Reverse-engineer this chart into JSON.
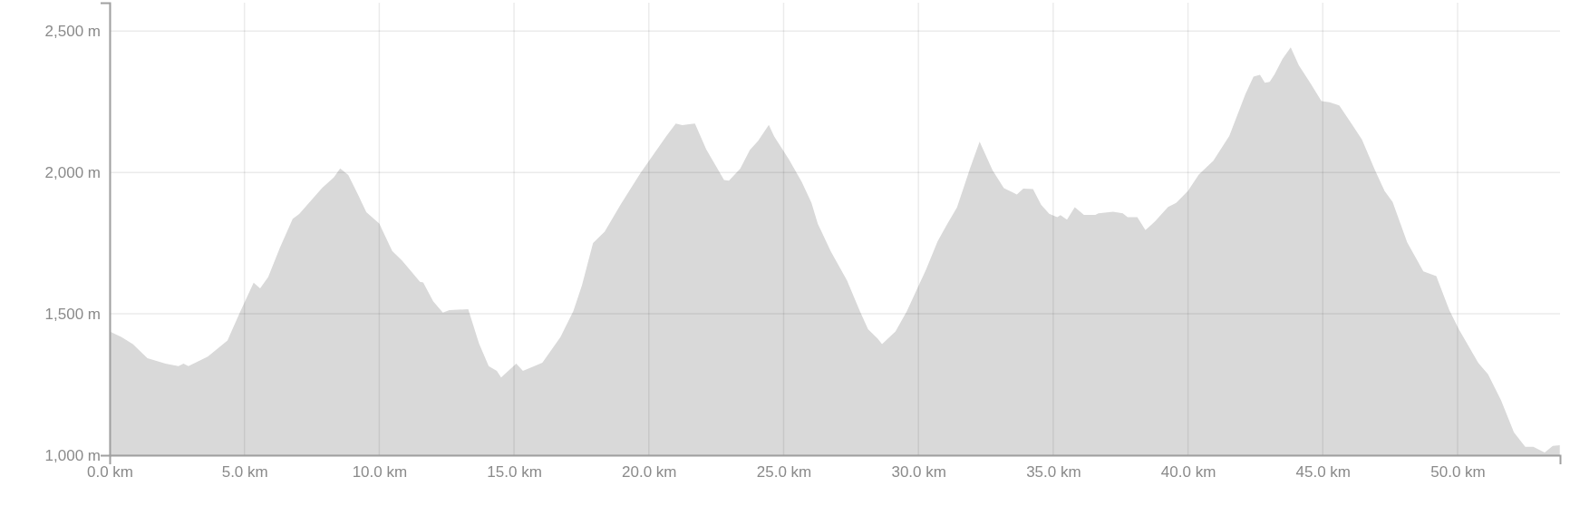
{
  "chart_data": {
    "type": "area",
    "color": "#d9d9d9",
    "grid": true,
    "x": [
      0,
      0.44,
      0.86,
      1.4,
      2.07,
      2.55,
      2.74,
      2.92,
      3.64,
      4.37,
      4.85,
      5.34,
      5.58,
      5.88,
      6.31,
      6.79,
      7.03,
      7.88,
      8.31,
      8.55,
      8.85,
      9.21,
      9.52,
      10.0,
      10.48,
      10.85,
      11.51,
      11.63,
      12.0,
      12.36,
      12.6,
      13.3,
      13.7,
      14.06,
      14.36,
      14.52,
      15.08,
      15.33,
      16.05,
      16.72,
      17.2,
      17.52,
      17.93,
      18.36,
      18.96,
      19.68,
      20.64,
      21.0,
      21.24,
      21.71,
      22.13,
      22.79,
      22.97,
      23.39,
      23.75,
      24.05,
      24.45,
      24.65,
      25.19,
      25.67,
      26.03,
      26.27,
      26.75,
      27.35,
      27.83,
      28.13,
      28.49,
      28.65,
      29.15,
      29.57,
      30.29,
      30.71,
      31.07,
      31.43,
      31.67,
      31.91,
      32.27,
      32.75,
      33.17,
      33.47,
      33.65,
      33.89,
      34.25,
      34.55,
      34.85,
      35.15,
      35.27,
      35.51,
      35.8,
      36.14,
      36.56,
      36.68,
      37.22,
      37.58,
      37.76,
      38.12,
      38.42,
      38.78,
      39.26,
      39.56,
      40.0,
      40.4,
      40.94,
      41.53,
      42.13,
      42.43,
      42.67,
      42.85,
      43.03,
      43.21,
      43.51,
      43.81,
      44.11,
      44.53,
      44.95,
      45.25,
      45.61,
      46.09,
      46.45,
      46.93,
      47.29,
      47.59,
      48.13,
      48.73,
      49.21,
      49.69,
      50.05,
      50.77,
      51.13,
      51.61,
      52.09,
      52.51,
      52.81,
      53.23,
      53.53,
      53.79
    ],
    "values": [
      1438,
      1418,
      1393,
      1343,
      1324,
      1315,
      1324,
      1315,
      1349,
      1406,
      1509,
      1610,
      1590,
      1630,
      1733,
      1836,
      1853,
      1945,
      1982,
      2014,
      1991,
      1922,
      1859,
      1819,
      1722,
      1688,
      1613,
      1611,
      1544,
      1504,
      1513,
      1516,
      1395,
      1315,
      1298,
      1275,
      1324,
      1298,
      1327,
      1418,
      1510,
      1601,
      1750,
      1790,
      1887,
      1996,
      2127,
      2173,
      2167,
      2173,
      2081,
      1973,
      1971,
      2013,
      2080,
      2111,
      2168,
      2127,
      2047,
      1967,
      1893,
      1818,
      1721,
      1618,
      1509,
      1446,
      1412,
      1393,
      1438,
      1509,
      1658,
      1756,
      1818,
      1876,
      1944,
      2013,
      2109,
      2008,
      1944,
      1931,
      1922,
      1943,
      1941,
      1886,
      1854,
      1842,
      1849,
      1833,
      1877,
      1850,
      1850,
      1855,
      1861,
      1855,
      1842,
      1842,
      1796,
      1827,
      1878,
      1892,
      1935,
      1992,
      2041,
      2129,
      2277,
      2339,
      2345,
      2317,
      2320,
      2347,
      2402,
      2442,
      2379,
      2317,
      2252,
      2248,
      2237,
      2169,
      2117,
      2009,
      1935,
      1895,
      1753,
      1650,
      1633,
      1514,
      1445,
      1326,
      1286,
      1195,
      1081,
      1030,
      1030,
      1010,
      1033,
      1035
    ],
    "xlim": [
      0,
      53.8
    ],
    "ylim": [
      1000,
      2600
    ],
    "xticks": [
      {
        "value": 0,
        "label": "0.0 km"
      },
      {
        "value": 5,
        "label": "5.0 km"
      },
      {
        "value": 10,
        "label": "10.0 km"
      },
      {
        "value": 15,
        "label": "15.0 km"
      },
      {
        "value": 20,
        "label": "20.0 km"
      },
      {
        "value": 25,
        "label": "25.0 km"
      },
      {
        "value": 30,
        "label": "30.0 km"
      },
      {
        "value": 35,
        "label": "35.0 km"
      },
      {
        "value": 40,
        "label": "40.0 km"
      },
      {
        "value": 45,
        "label": "45.0 km"
      },
      {
        "value": 50,
        "label": "50.0 km"
      }
    ],
    "yticks": [
      {
        "value": 1000,
        "label": "1,000 m"
      },
      {
        "value": 1500,
        "label": "1,500 m"
      },
      {
        "value": 2000,
        "label": "2,000 m"
      },
      {
        "value": 2500,
        "label": "2,500 m"
      }
    ]
  }
}
